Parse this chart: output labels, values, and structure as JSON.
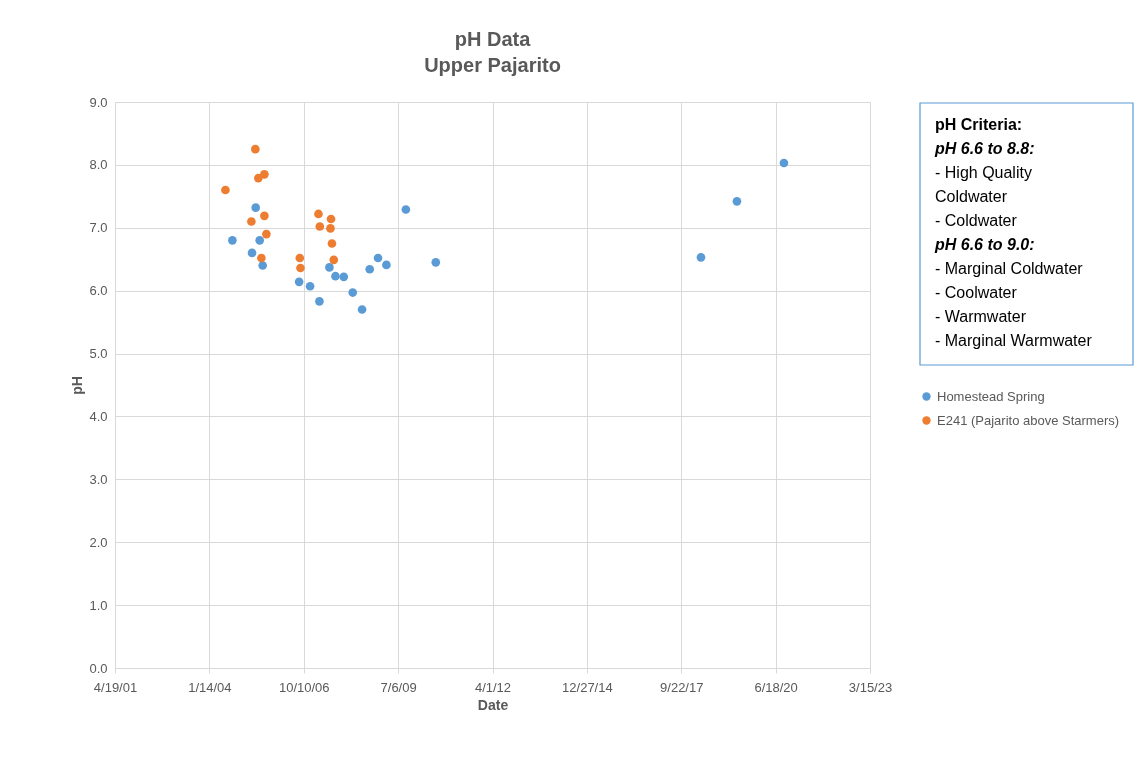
{
  "chart_data": {
    "type": "scatter",
    "title": "pH Data",
    "subtitle": "Upper Pajarito",
    "xlabel": "Date",
    "ylabel": "pH",
    "xlim": [
      "2001-04-19",
      "2023-03-15"
    ],
    "xticks": [
      {
        "value": "2001-04-19",
        "label": "4/19/01"
      },
      {
        "value": "2004-01-14",
        "label": "1/14/04"
      },
      {
        "value": "2006-10-10",
        "label": "10/10/06"
      },
      {
        "value": "2009-07-06",
        "label": "7/6/09"
      },
      {
        "value": "2012-04-01",
        "label": "4/1/12"
      },
      {
        "value": "2014-12-27",
        "label": "12/27/14"
      },
      {
        "value": "2017-09-22",
        "label": "9/22/17"
      },
      {
        "value": "2020-06-18",
        "label": "6/18/20"
      },
      {
        "value": "2023-03-15",
        "label": "3/15/23"
      }
    ],
    "ylim": [
      0,
      9
    ],
    "yticks": [
      {
        "value": 0,
        "label": "0.0"
      },
      {
        "value": 1,
        "label": "1.0"
      },
      {
        "value": 2,
        "label": "2.0"
      },
      {
        "value": 3,
        "label": "3.0"
      },
      {
        "value": 4,
        "label": "4.0"
      },
      {
        "value": 5,
        "label": "5.0"
      },
      {
        "value": 6,
        "label": "6.0"
      },
      {
        "value": 7,
        "label": "7.0"
      },
      {
        "value": 8,
        "label": "8.0"
      },
      {
        "value": 9,
        "label": "9.0"
      }
    ],
    "grid": true,
    "legend": "right",
    "marker": "circle",
    "series": [
      {
        "name": "Homestead Spring",
        "color": "#5b9bd5",
        "x": [
          "2004-09-14",
          "2005-05-19",
          "2005-06-30",
          "2005-04-10",
          "2005-08-01",
          "2006-08-22",
          "2006-12-16",
          "2007-03-25",
          "2007-07-09",
          "2007-09-11",
          "2007-12-08",
          "2008-03-12",
          "2008-06-19",
          "2008-09-08",
          "2008-12-05",
          "2009-03-04",
          "2009-09-26",
          "2010-08-09",
          "2018-04-19",
          "2019-05-05",
          "2020-09-14"
        ],
        "values": [
          6.8,
          7.32,
          6.8,
          6.6,
          6.4,
          6.14,
          6.07,
          5.83,
          6.37,
          6.23,
          6.22,
          5.97,
          5.7,
          6.34,
          6.52,
          6.41,
          7.29,
          6.45,
          6.53,
          7.42,
          8.03
        ]
      },
      {
        "name": "E241 (Pajarito above Starmers)",
        "color": "#ed7d31",
        "x": [
          "2004-07-02",
          "2005-05-15",
          "2005-04-03",
          "2005-06-16",
          "2005-08-19",
          "2005-08-19",
          "2005-09-09",
          "2005-07-18",
          "2006-08-29",
          "2006-09-05",
          "2007-03-15",
          "2007-03-29",
          "2007-07-26",
          "2007-07-20",
          "2007-08-05",
          "2007-08-24"
        ],
        "values": [
          7.6,
          8.25,
          7.1,
          7.79,
          7.85,
          7.19,
          6.9,
          6.52,
          6.52,
          6.36,
          7.22,
          7.02,
          7.14,
          6.99,
          6.75,
          6.49
        ]
      }
    ],
    "annotations": [
      "pH Criteria:",
      "pH 6.6 to 8.8:",
      "- High Quality",
      "Coldwater",
      " - Coldwater",
      "pH 6.6 to 9.0:",
      "- Marginal Coldwater",
      "- Coolwater",
      "- Warmwater",
      "- Marginal Warmwater"
    ]
  }
}
